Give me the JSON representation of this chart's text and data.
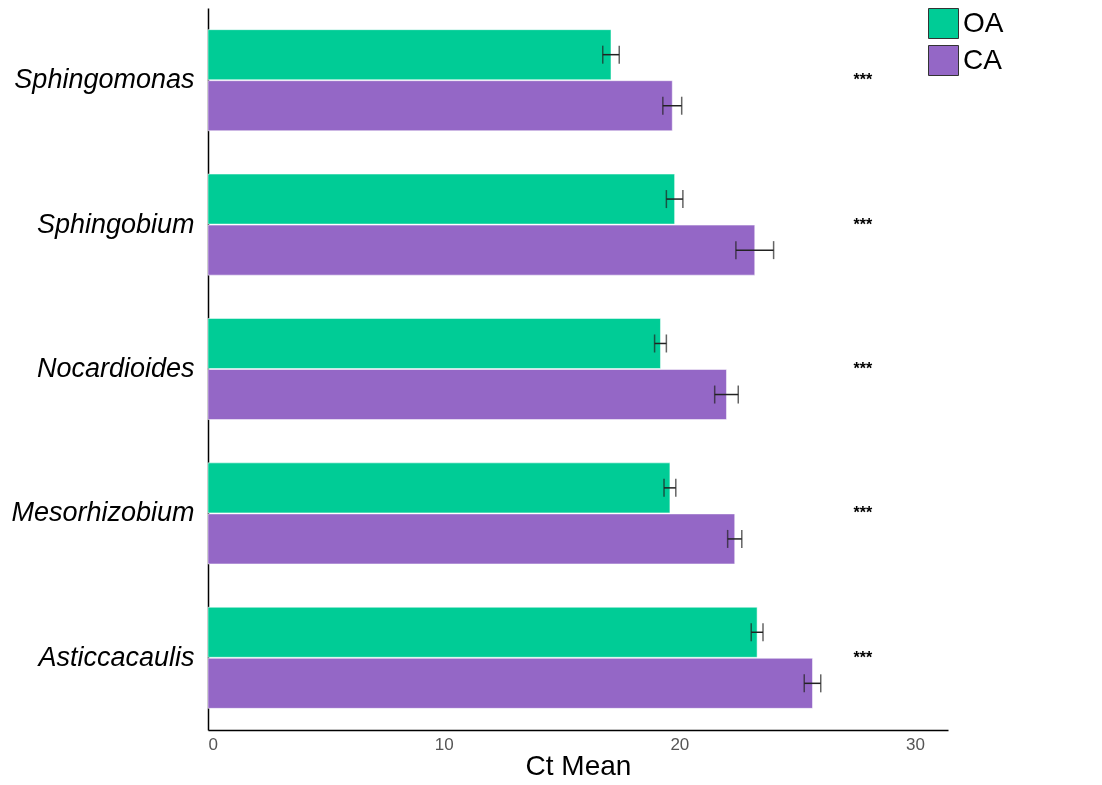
{
  "chart_data": {
    "type": "bar",
    "orientation": "horizontal",
    "xlabel": "Ct Mean",
    "categories": [
      "Sphingomonas",
      "Sphingobium",
      "Nocardioides",
      "Mesorhizobium",
      "Asticcacaulis"
    ],
    "series": [
      {
        "name": "OA",
        "color": "#00cc96",
        "values": [
          17.1,
          19.8,
          19.2,
          19.6,
          23.3
        ],
        "errors": [
          0.35,
          0.35,
          0.25,
          0.25,
          0.25
        ]
      },
      {
        "name": "CA",
        "color": "#9467c6",
        "values": [
          19.7,
          23.2,
          22.0,
          22.35,
          25.65
        ],
        "errors": [
          0.4,
          0.8,
          0.5,
          0.3,
          0.35
        ]
      }
    ],
    "xlim": [
      0,
      31.4
    ],
    "xticks": [
      0,
      10,
      20,
      30
    ],
    "grid": false,
    "legend": "right",
    "annotations": [
      "***",
      "***",
      "***",
      "***",
      "***"
    ]
  }
}
